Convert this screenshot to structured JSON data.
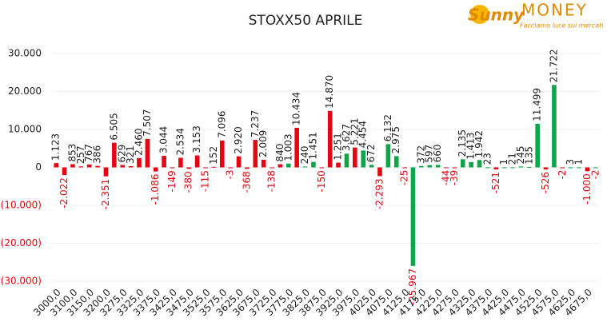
{
  "logo": {
    "name_a": "Sunny",
    "name_b": "MONEY",
    "tagline": "Facciamo luce sui mercati"
  },
  "chart_data": {
    "type": "bar",
    "title": "STOXX50 APRILE",
    "categories": [
      "3000,0",
      null,
      "3100,0",
      null,
      "3150,0",
      null,
      "3200,0",
      null,
      "3275,0",
      null,
      "3325,0",
      null,
      "3375,0",
      null,
      "3425,0",
      null,
      "3475,0",
      null,
      "3525,0",
      null,
      "3575,0",
      null,
      "3625,0",
      null,
      "3675,0",
      null,
      "3725,0",
      null,
      "3775,0",
      null,
      "3825,0",
      null,
      "3875,0",
      null,
      "3925,0",
      null,
      "3975,0",
      null,
      "4025,0",
      null,
      "4075,0",
      null,
      "4125,0",
      null,
      "4175,0",
      null,
      "4225,0",
      null,
      "4275,0",
      null,
      "4325,0",
      null,
      "4375,0",
      null,
      "4425,0",
      null,
      "4475,0",
      null,
      "4525,0",
      null,
      "4575,0",
      null,
      "4625,0",
      null,
      "4675,0",
      null
    ],
    "values": [
      1123,
      -2022,
      853,
      257,
      767,
      386,
      -2351,
      6505,
      629,
      321,
      2460,
      7507,
      -1086,
      3044,
      -149,
      2534,
      -380,
      3153,
      -115,
      152,
      7096,
      -3,
      2920,
      -368,
      7237,
      2009,
      -138,
      840,
      1003,
      10434,
      240,
      1451,
      -150,
      14870,
      1251,
      3627,
      5221,
      4454,
      672,
      -2293,
      6132,
      2975,
      -25,
      -25967,
      372,
      597,
      660,
      -44,
      -39,
      2135,
      1413,
      1942,
      23,
      -521,
      1,
      21,
      245,
      135,
      11499,
      -526,
      21722,
      -2,
      3,
      1,
      -1000,
      -2
    ],
    "value_labels": [
      "1.123",
      "-2.022",
      "853",
      "257",
      "767",
      "386",
      "-2.351",
      "6.505",
      "629",
      "321",
      "2.460",
      "7.507",
      "-1.086",
      "3.044",
      "-149",
      "2.534",
      "-380",
      "3.153",
      "-115",
      "152",
      "7.096",
      "-3",
      "2.920",
      "-368",
      "7.237",
      "2.009",
      "-138",
      "840",
      "1.003",
      "10.434",
      "240",
      "1.451",
      "-150",
      "14.870",
      "1.251",
      "3.627",
      "5.221",
      "4.454",
      "672",
      "-2.293",
      "6.132",
      "2.975",
      "-25",
      "-25.967",
      "372",
      "597",
      "660",
      "-44",
      "-39",
      "2.135",
      "1.413",
      "1.942",
      "23",
      "-521",
      "1",
      "21",
      "245",
      "135",
      "11.499",
      "-526",
      "21.722",
      "-2",
      "3",
      "1",
      "-1.000",
      "-2"
    ],
    "colors": [
      "#e30613",
      "#e30613",
      "#e30613",
      "#e30613",
      "#e30613",
      "#e30613",
      "#e30613",
      "#e30613",
      "#e30613",
      "#e30613",
      "#e30613",
      "#e30613",
      "#e30613",
      "#e30613",
      "#e30613",
      "#e30613",
      "#e30613",
      "#e30613",
      "#e30613",
      "#e30613",
      "#e30613",
      "#e30613",
      "#e30613",
      "#e30613",
      "#e30613",
      "#e30613",
      "#e30613",
      "#e30613",
      "#10a54a",
      "#e30613",
      "#10a54a",
      "#10a54a",
      "#e30613",
      "#e30613",
      "#e30613",
      "#10a54a",
      "#e30613",
      "#10a54a",
      "#10a54a",
      "#e30613",
      "#10a54a",
      "#10a54a",
      "#e30613",
      "#10a54a",
      "#10a54a",
      "#10a54a",
      "#10a54a",
      "#e30613",
      "#e30613",
      "#10a54a",
      "#10a54a",
      "#10a54a",
      "#10a54a",
      "#e30613",
      "#10a54a",
      "#10a54a",
      "#10a54a",
      "#10a54a",
      "#10a54a",
      "#e30613",
      "#10a54a",
      "#e30613",
      "#10a54a",
      "#10a54a",
      "#e30613",
      "#10a54a"
    ],
    "ylim": [
      -30000,
      30000
    ],
    "yticks": [
      {
        "value": -30000,
        "label": "(30.000)"
      },
      {
        "value": -20000,
        "label": "(20.000)"
      },
      {
        "value": -10000,
        "label": "(10.000)"
      },
      0,
      {
        "value": 10000,
        "label": "10.000"
      },
      {
        "value": 20000,
        "label": "20.000"
      },
      {
        "value": 30000,
        "label": "30.000"
      }
    ],
    "grid": true
  }
}
